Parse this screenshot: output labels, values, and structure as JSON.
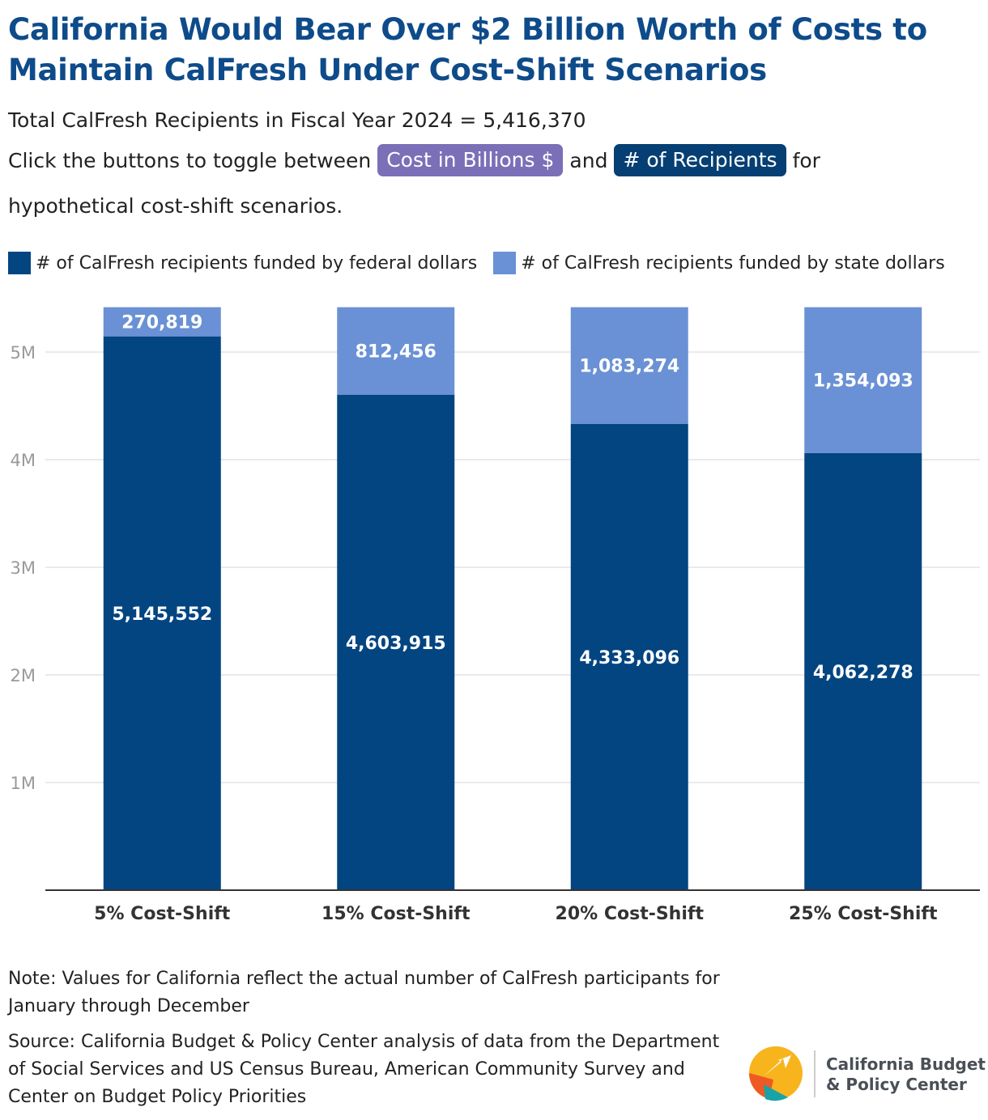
{
  "title": "California Would Bear Over $2 Billion Worth of Costs to Maintain CalFresh Under Cost-Shift Scenarios",
  "subtitle": "Total CalFresh Recipients in Fiscal Year 2024 = 5,416,370",
  "toggle": {
    "prefix": "Click the buttons to toggle between",
    "cost_label": "Cost in Billions $",
    "and": "and",
    "recipients_label": "# of Recipients",
    "suffix": "for",
    "line3": "hypothetical cost-shift scenarios."
  },
  "legend": {
    "federal": "# of CalFresh recipients funded by federal dollars",
    "state": "# of CalFresh recipients funded by state dollars"
  },
  "colors": {
    "federal": "#034581",
    "state": "#6a91d5",
    "grid": "#e3e3e3",
    "axis_label": "#9a9a9a"
  },
  "chart_data": {
    "type": "bar",
    "stacked": true,
    "categories": [
      "5% Cost-Shift",
      "15% Cost-Shift",
      "20% Cost-Shift",
      "25% Cost-Shift"
    ],
    "series": [
      {
        "name": "# of CalFresh recipients funded by federal dollars",
        "values": [
          5145552,
          4603915,
          4333096,
          4062278
        ],
        "labels": [
          "5,145,552",
          "4,603,915",
          "4,333,096",
          "4,062,278"
        ]
      },
      {
        "name": "# of CalFresh recipients funded by state dollars",
        "values": [
          270819,
          812456,
          1083274,
          1354093
        ],
        "labels": [
          "270,819",
          "812,456",
          "1,083,274",
          "1,354,093"
        ]
      }
    ],
    "yticks": [
      1000000,
      2000000,
      3000000,
      4000000,
      5000000
    ],
    "ytick_labels": [
      "1M",
      "2M",
      "3M",
      "4M",
      "5M"
    ],
    "ylim": [
      0,
      5416370
    ],
    "legend_position": "top"
  },
  "footer": {
    "note": "Note: Values for California reflect the actual number of CalFresh participants for January through December",
    "source": "Source: California Budget & Policy Center analysis of data from the Department of Social Services and US Census Bureau, American Community Survey and Center on Budget Policy Priorities"
  },
  "logo": {
    "line1": "California Budget",
    "line2": "& Policy Center"
  }
}
